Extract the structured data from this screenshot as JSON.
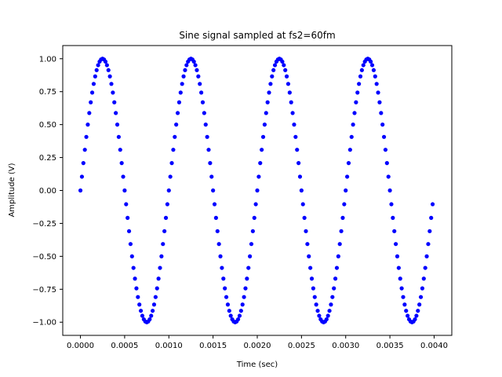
{
  "chart_data": {
    "type": "scatter",
    "title": "Sine signal sampled at fs2=60fm",
    "xlabel": "Time (sec)",
    "ylabel": "Amplitude (V)",
    "xlim": [
      -0.0002,
      0.0042
    ],
    "ylim": [
      -1.1,
      1.1
    ],
    "grid": false,
    "marker_color": "#0000ff",
    "x_ticks": [
      0.0,
      0.0005,
      0.001,
      0.0015,
      0.002,
      0.0025,
      0.003,
      0.0035,
      0.004
    ],
    "x_tick_labels": [
      "0.0000",
      "0.0005",
      "0.0010",
      "0.0015",
      "0.0020",
      "0.0025",
      "0.0030",
      "0.0035",
      "0.0040"
    ],
    "y_ticks": [
      -1.0,
      -0.75,
      -0.5,
      -0.25,
      0.0,
      0.25,
      0.5,
      0.75,
      1.0
    ],
    "y_tick_labels": [
      "−1.00",
      "−0.75",
      "−0.50",
      "−0.25",
      "0.00",
      "0.25",
      "0.50",
      "0.75",
      "1.00"
    ],
    "series": [
      {
        "x": [
          0.0,
          1.67e-05,
          3.33e-05,
          5e-05,
          6.67e-05,
          8.33e-05,
          0.0001,
          0.0001167,
          0.0001333,
          0.00015,
          0.0001667,
          0.0001833,
          0.0002,
          0.0002167,
          0.0002333,
          0.00025,
          0.0002667,
          0.0002833,
          0.0003,
          0.0003167,
          0.0003333,
          0.00035,
          0.0003667,
          0.0003833,
          0.0004,
          0.0004167,
          0.0004333,
          0.00045,
          0.0004667,
          0.0004833,
          0.0005,
          0.0005167,
          0.0005333,
          0.00055,
          0.0005667,
          0.0005833,
          0.0006,
          0.0006167,
          0.0006333,
          0.00065,
          0.0006667,
          0.0006833,
          0.0007,
          0.0007167,
          0.0007333,
          0.00075,
          0.0007667,
          0.0007833,
          0.0008,
          0.0008167,
          0.0008333,
          0.00085,
          0.0008667,
          0.0008833,
          0.0009,
          0.0009167,
          0.0009333,
          0.00095,
          0.0009667,
          0.0009833,
          0.001,
          0.0010167,
          0.0010333,
          0.00105,
          0.0010667,
          0.0010833,
          0.0011,
          0.0011167,
          0.0011333,
          0.00115,
          0.0011667,
          0.0011833,
          0.0012,
          0.0012167,
          0.0012333,
          0.00125,
          0.0012667,
          0.0012833,
          0.0013,
          0.0013167,
          0.0013333,
          0.00135,
          0.0013667,
          0.0013833,
          0.0014,
          0.0014167,
          0.0014333,
          0.00145,
          0.0014667,
          0.0014833,
          0.0015,
          0.0015167,
          0.0015333,
          0.00155,
          0.0015667,
          0.0015833,
          0.0016,
          0.0016167,
          0.0016333,
          0.00165,
          0.0016667,
          0.0016833,
          0.0017,
          0.0017167,
          0.0017333,
          0.00175,
          0.0017667,
          0.0017833,
          0.0018,
          0.0018167,
          0.0018333,
          0.00185,
          0.0018667,
          0.0018833,
          0.0019,
          0.0019167,
          0.0019333,
          0.00195,
          0.0019667,
          0.0019833,
          0.002,
          0.0020167,
          0.0020333,
          0.00205,
          0.0020667,
          0.0020833,
          0.0021,
          0.0021167,
          0.0021333,
          0.00215,
          0.0021667,
          0.0021833,
          0.0022,
          0.0022167,
          0.0022333,
          0.00225,
          0.0022667,
          0.0022833,
          0.0023,
          0.0023167,
          0.0023333,
          0.00235,
          0.0023667,
          0.0023833,
          0.0024,
          0.0024167,
          0.0024333,
          0.00245,
          0.0024667,
          0.0024833,
          0.0025,
          0.0025167,
          0.0025333,
          0.00255,
          0.0025667,
          0.0025833,
          0.0026,
          0.0026167,
          0.0026333,
          0.00265,
          0.0026667,
          0.0026833,
          0.0027,
          0.0027167,
          0.0027333,
          0.00275,
          0.0027667,
          0.0027833,
          0.0028,
          0.0028167,
          0.0028333,
          0.00285,
          0.0028667,
          0.0028833,
          0.0029,
          0.0029167,
          0.0029333,
          0.00295,
          0.0029667,
          0.0029833,
          0.003,
          0.0030167,
          0.0030333,
          0.00305,
          0.0030667,
          0.0030833,
          0.0031,
          0.0031167,
          0.0031333,
          0.00315,
          0.0031667,
          0.0031833,
          0.0032,
          0.0032167,
          0.0032333,
          0.00325,
          0.0032667,
          0.0032833,
          0.0033,
          0.0033167,
          0.0033333,
          0.00335,
          0.0033667,
          0.0033833,
          0.0034,
          0.0034167,
          0.0034333,
          0.00345,
          0.0034667,
          0.0034833,
          0.0035,
          0.0035167,
          0.0035333,
          0.00355,
          0.0035667,
          0.0035833,
          0.0036,
          0.0036167,
          0.0036333,
          0.00365,
          0.0036667,
          0.0036833,
          0.0037,
          0.0037167,
          0.0037333,
          0.00375,
          0.0037667,
          0.0037833,
          0.0038,
          0.0038167,
          0.0038333,
          0.00385,
          0.0038667,
          0.0038833,
          0.0039,
          0.0039167,
          0.0039333,
          0.00395,
          0.0039667,
          0.0039833
        ],
        "y": [
          0.0,
          0.1045,
          0.2079,
          0.309,
          0.4067,
          0.5,
          0.5878,
          0.6691,
          0.7431,
          0.809,
          0.866,
          0.9135,
          0.9511,
          0.9781,
          0.9945,
          1.0,
          0.9945,
          0.9781,
          0.9511,
          0.9135,
          0.866,
          0.809,
          0.7431,
          0.6691,
          0.5878,
          0.5,
          0.4067,
          0.309,
          0.2079,
          0.1045,
          0.0,
          -0.1045,
          -0.2079,
          -0.309,
          -0.4067,
          -0.5,
          -0.5878,
          -0.6691,
          -0.7431,
          -0.809,
          -0.866,
          -0.9135,
          -0.9511,
          -0.9781,
          -0.9945,
          -1.0,
          -0.9945,
          -0.9781,
          -0.9511,
          -0.9135,
          -0.866,
          -0.809,
          -0.7431,
          -0.6691,
          -0.5878,
          -0.5,
          -0.4067,
          -0.309,
          -0.2079,
          -0.1045,
          0.0,
          0.1045,
          0.2079,
          0.309,
          0.4067,
          0.5,
          0.5878,
          0.6691,
          0.7431,
          0.809,
          0.866,
          0.9135,
          0.9511,
          0.9781,
          0.9945,
          1.0,
          0.9945,
          0.9781,
          0.9511,
          0.9135,
          0.866,
          0.809,
          0.7431,
          0.6691,
          0.5878,
          0.5,
          0.4067,
          0.309,
          0.2079,
          0.1045,
          0.0,
          -0.1045,
          -0.2079,
          -0.309,
          -0.4067,
          -0.5,
          -0.5878,
          -0.6691,
          -0.7431,
          -0.809,
          -0.866,
          -0.9135,
          -0.9511,
          -0.9781,
          -0.9945,
          -1.0,
          -0.9945,
          -0.9781,
          -0.9511,
          -0.9135,
          -0.866,
          -0.809,
          -0.7431,
          -0.6691,
          -0.5878,
          -0.5,
          -0.4067,
          -0.309,
          -0.2079,
          -0.1045,
          0.0,
          0.1045,
          0.2079,
          0.309,
          0.4067,
          0.5,
          0.5878,
          0.6691,
          0.7431,
          0.809,
          0.866,
          0.9135,
          0.9511,
          0.9781,
          0.9945,
          1.0,
          0.9945,
          0.9781,
          0.9511,
          0.9135,
          0.866,
          0.809,
          0.7431,
          0.6691,
          0.5878,
          0.5,
          0.4067,
          0.309,
          0.2079,
          0.1045,
          0.0,
          -0.1045,
          -0.2079,
          -0.309,
          -0.4067,
          -0.5,
          -0.5878,
          -0.6691,
          -0.7431,
          -0.809,
          -0.866,
          -0.9135,
          -0.9511,
          -0.9781,
          -0.9945,
          -1.0,
          -0.9945,
          -0.9781,
          -0.9511,
          -0.9135,
          -0.866,
          -0.809,
          -0.7431,
          -0.6691,
          -0.5878,
          -0.5,
          -0.4067,
          -0.309,
          -0.2079,
          -0.1045,
          0.0,
          0.1045,
          0.2079,
          0.309,
          0.4067,
          0.5,
          0.5878,
          0.6691,
          0.7431,
          0.809,
          0.866,
          0.9135,
          0.9511,
          0.9781,
          0.9945,
          1.0,
          0.9945,
          0.9781,
          0.9511,
          0.9135,
          0.866,
          0.809,
          0.7431,
          0.6691,
          0.5878,
          0.5,
          0.4067,
          0.309,
          0.2079,
          0.1045,
          0.0,
          -0.1045,
          -0.2079,
          -0.309,
          -0.4067,
          -0.5,
          -0.5878,
          -0.6691,
          -0.7431,
          -0.809,
          -0.866,
          -0.9135,
          -0.9511,
          -0.9781,
          -0.9945,
          -1.0,
          -0.9945,
          -0.9781,
          -0.9511,
          -0.9135,
          -0.866,
          -0.809,
          -0.7431,
          -0.6691,
          -0.5878,
          -0.5,
          -0.4067,
          -0.309,
          -0.2079,
          -0.1045
        ]
      }
    ]
  }
}
